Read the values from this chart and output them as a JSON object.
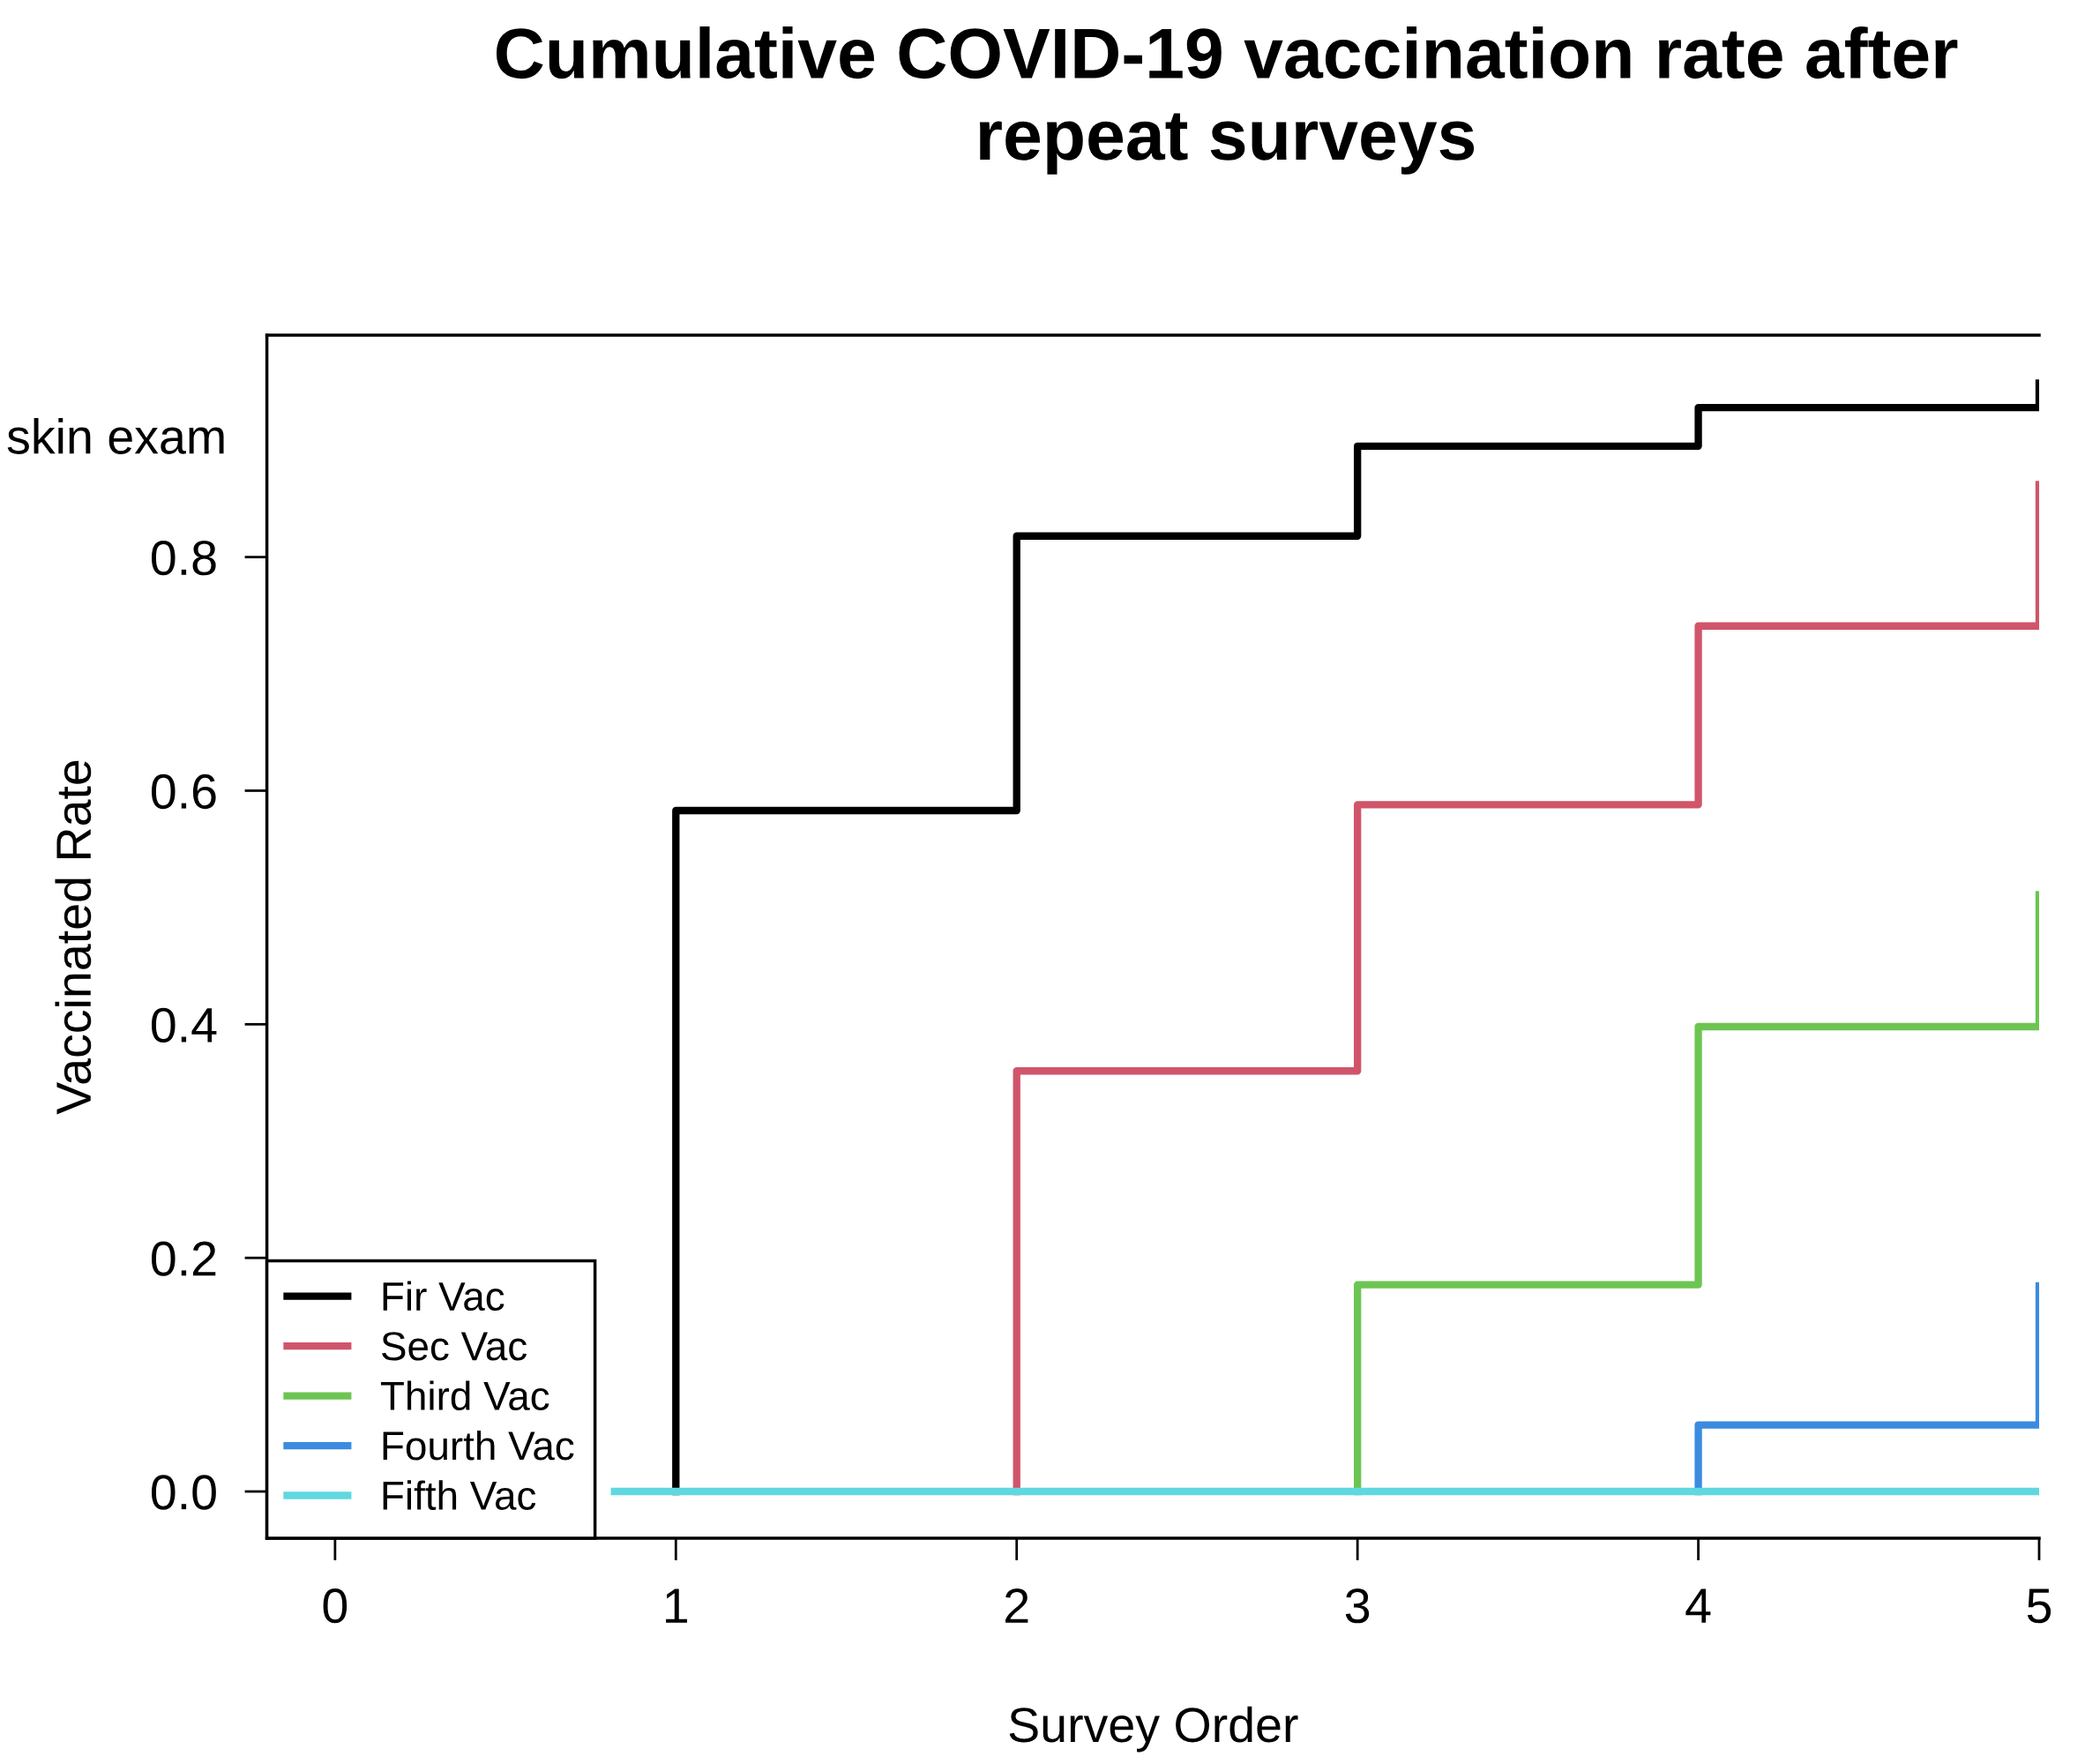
{
  "chart_data": {
    "type": "step",
    "title": "Cumulative COVID-19 vaccination rate after\nrepeat surveys",
    "xlabel": "Survey Order",
    "ylabel": "Vaccinated Rate",
    "annotations": [
      "skin exam"
    ],
    "series": [
      {
        "name": "Fir Vac",
        "color": "#000000",
        "x": [
          1,
          1,
          2,
          3,
          4,
          5
        ],
        "values": [
          0,
          0.583,
          0.818,
          0.895,
          0.928,
          0.949
        ]
      },
      {
        "name": "Sec Vac",
        "color": "#d0556a",
        "x": [
          2,
          2,
          3,
          4,
          5
        ],
        "values": [
          0,
          0.36,
          0.588,
          0.741,
          0.862
        ]
      },
      {
        "name": "Third Vac",
        "color": "#6cc552",
        "x": [
          3,
          3,
          4,
          5
        ],
        "values": [
          0,
          0.177,
          0.398,
          0.511
        ]
      },
      {
        "name": "Fourth Vac",
        "color": "#3b8be0",
        "x": [
          4,
          4,
          5
        ],
        "values": [
          0,
          0.057,
          0.176
        ]
      },
      {
        "name": "Fifth Vac",
        "color": "#5fd8e0",
        "x": [
          0.82,
          5
        ],
        "values": [
          0,
          0
        ]
      }
    ],
    "xlim": [
      -0.2,
      5.0
    ],
    "ylim": [
      -0.04,
      0.99
    ],
    "xticks": [
      0,
      1,
      2,
      3,
      4,
      5
    ],
    "yticks": [
      {
        "value": 0,
        "label": "0.0"
      },
      0.2,
      0.4,
      0.6,
      0.8
    ],
    "grid": false,
    "legend": "bottom left",
    "line_style": "solid"
  }
}
